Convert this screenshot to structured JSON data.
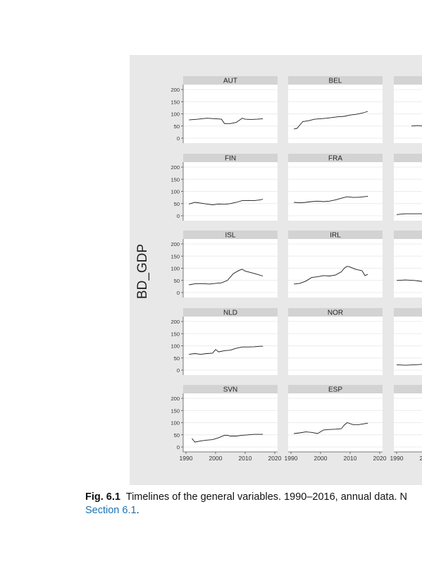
{
  "chart_data": {
    "type": "line",
    "ylabel": "BD_GDP",
    "xlabel": "",
    "xlim": [
      1990,
      2020
    ],
    "ylim": [
      0,
      200
    ],
    "x_ticks": [
      1990,
      2000,
      2010,
      2020
    ],
    "y_ticks": [
      0,
      50,
      100,
      150,
      200
    ],
    "grid": true,
    "panels": [
      {
        "name": "AUT",
        "x": [
          1991,
          1994,
          1997,
          2000,
          2002,
          2003,
          2005,
          2007,
          2009,
          2010,
          2012,
          2014,
          2016
        ],
        "values": [
          75,
          78,
          82,
          80,
          78,
          60,
          60,
          65,
          82,
          78,
          77,
          78,
          80
        ]
      },
      {
        "name": "BEL",
        "x": [
          1991,
          1992,
          1994,
          1996,
          1998,
          2000,
          2002,
          2004,
          2006,
          2008,
          2010,
          2012,
          2014,
          2016
        ],
        "values": [
          38,
          40,
          68,
          72,
          78,
          80,
          82,
          85,
          88,
          90,
          95,
          98,
          103,
          110
        ]
      },
      {
        "name": "",
        "x": [
          1995,
          1997,
          1999,
          2001
        ],
        "values": [
          50,
          52,
          50,
          48
        ]
      },
      {
        "name": "FIN",
        "x": [
          1991,
          1993,
          1995,
          1997,
          1999,
          2001,
          2003,
          2005,
          2007,
          2009,
          2011,
          2013,
          2015,
          2016
        ],
        "values": [
          48,
          55,
          52,
          48,
          45,
          48,
          47,
          50,
          55,
          62,
          63,
          62,
          65,
          68
        ]
      },
      {
        "name": "FRA",
        "x": [
          1991,
          1993,
          1995,
          1997,
          1999,
          2001,
          2003,
          2005,
          2007,
          2009,
          2011,
          2013,
          2016
        ],
        "values": [
          55,
          53,
          55,
          58,
          60,
          58,
          60,
          65,
          72,
          78,
          75,
          76,
          80
        ]
      },
      {
        "name": "",
        "x": [
          1990,
          1993,
          1996,
          1999,
          2001
        ],
        "values": [
          5,
          8,
          8,
          8,
          8
        ]
      },
      {
        "name": "ISL",
        "x": [
          1991,
          1993,
          1995,
          1998,
          2000,
          2002,
          2004,
          2006,
          2008,
          2009,
          2010,
          2012,
          2014,
          2016
        ],
        "values": [
          32,
          36,
          37,
          35,
          38,
          40,
          50,
          78,
          92,
          96,
          88,
          82,
          75,
          68
        ]
      },
      {
        "name": "IRL",
        "x": [
          1991,
          1993,
          1995,
          1997,
          1999,
          2001,
          2003,
          2005,
          2007,
          2008,
          2009,
          2010,
          2012,
          2014,
          2015,
          2016
        ],
        "values": [
          35,
          38,
          47,
          62,
          65,
          70,
          68,
          72,
          85,
          100,
          108,
          105,
          95,
          90,
          70,
          75
        ]
      },
      {
        "name": "",
        "x": [
          1990,
          1993,
          1996,
          1999,
          2001
        ],
        "values": [
          50,
          52,
          50,
          45,
          42
        ]
      },
      {
        "name": "NLD",
        "x": [
          1991,
          1993,
          1995,
          1997,
          1999,
          2000,
          2001,
          2003,
          2005,
          2007,
          2009,
          2011,
          2013,
          2015,
          2016
        ],
        "values": [
          65,
          68,
          65,
          68,
          70,
          85,
          75,
          80,
          82,
          90,
          95,
          95,
          96,
          98,
          98
        ]
      },
      {
        "name": "NOR",
        "x": [],
        "values": []
      },
      {
        "name": "",
        "x": [
          1990,
          1993,
          1996,
          1999,
          2001
        ],
        "values": [
          22,
          20,
          22,
          24,
          28
        ]
      },
      {
        "name": "SVN",
        "x": [
          1992,
          1993,
          1995,
          1997,
          1999,
          2001,
          2003,
          2004,
          2005,
          2007,
          2009,
          2011,
          2013,
          2016
        ],
        "values": [
          35,
          20,
          25,
          28,
          30,
          38,
          48,
          48,
          45,
          45,
          48,
          50,
          52,
          52
        ]
      },
      {
        "name": "ESP",
        "x": [
          1991,
          1993,
          1995,
          1997,
          1999,
          2001,
          2003,
          2005,
          2007,
          2008,
          2009,
          2011,
          2013,
          2016
        ],
        "values": [
          55,
          58,
          62,
          60,
          55,
          70,
          72,
          73,
          75,
          90,
          100,
          92,
          92,
          98
        ]
      },
      {
        "name": "",
        "x": [],
        "values": []
      }
    ]
  },
  "caption": {
    "fig_label": "Fig. 6.1",
    "text": "Timelines of the general variables. 1990–2016, annual data. N",
    "line2_link": "Section 6.1",
    "line2_end": "."
  }
}
